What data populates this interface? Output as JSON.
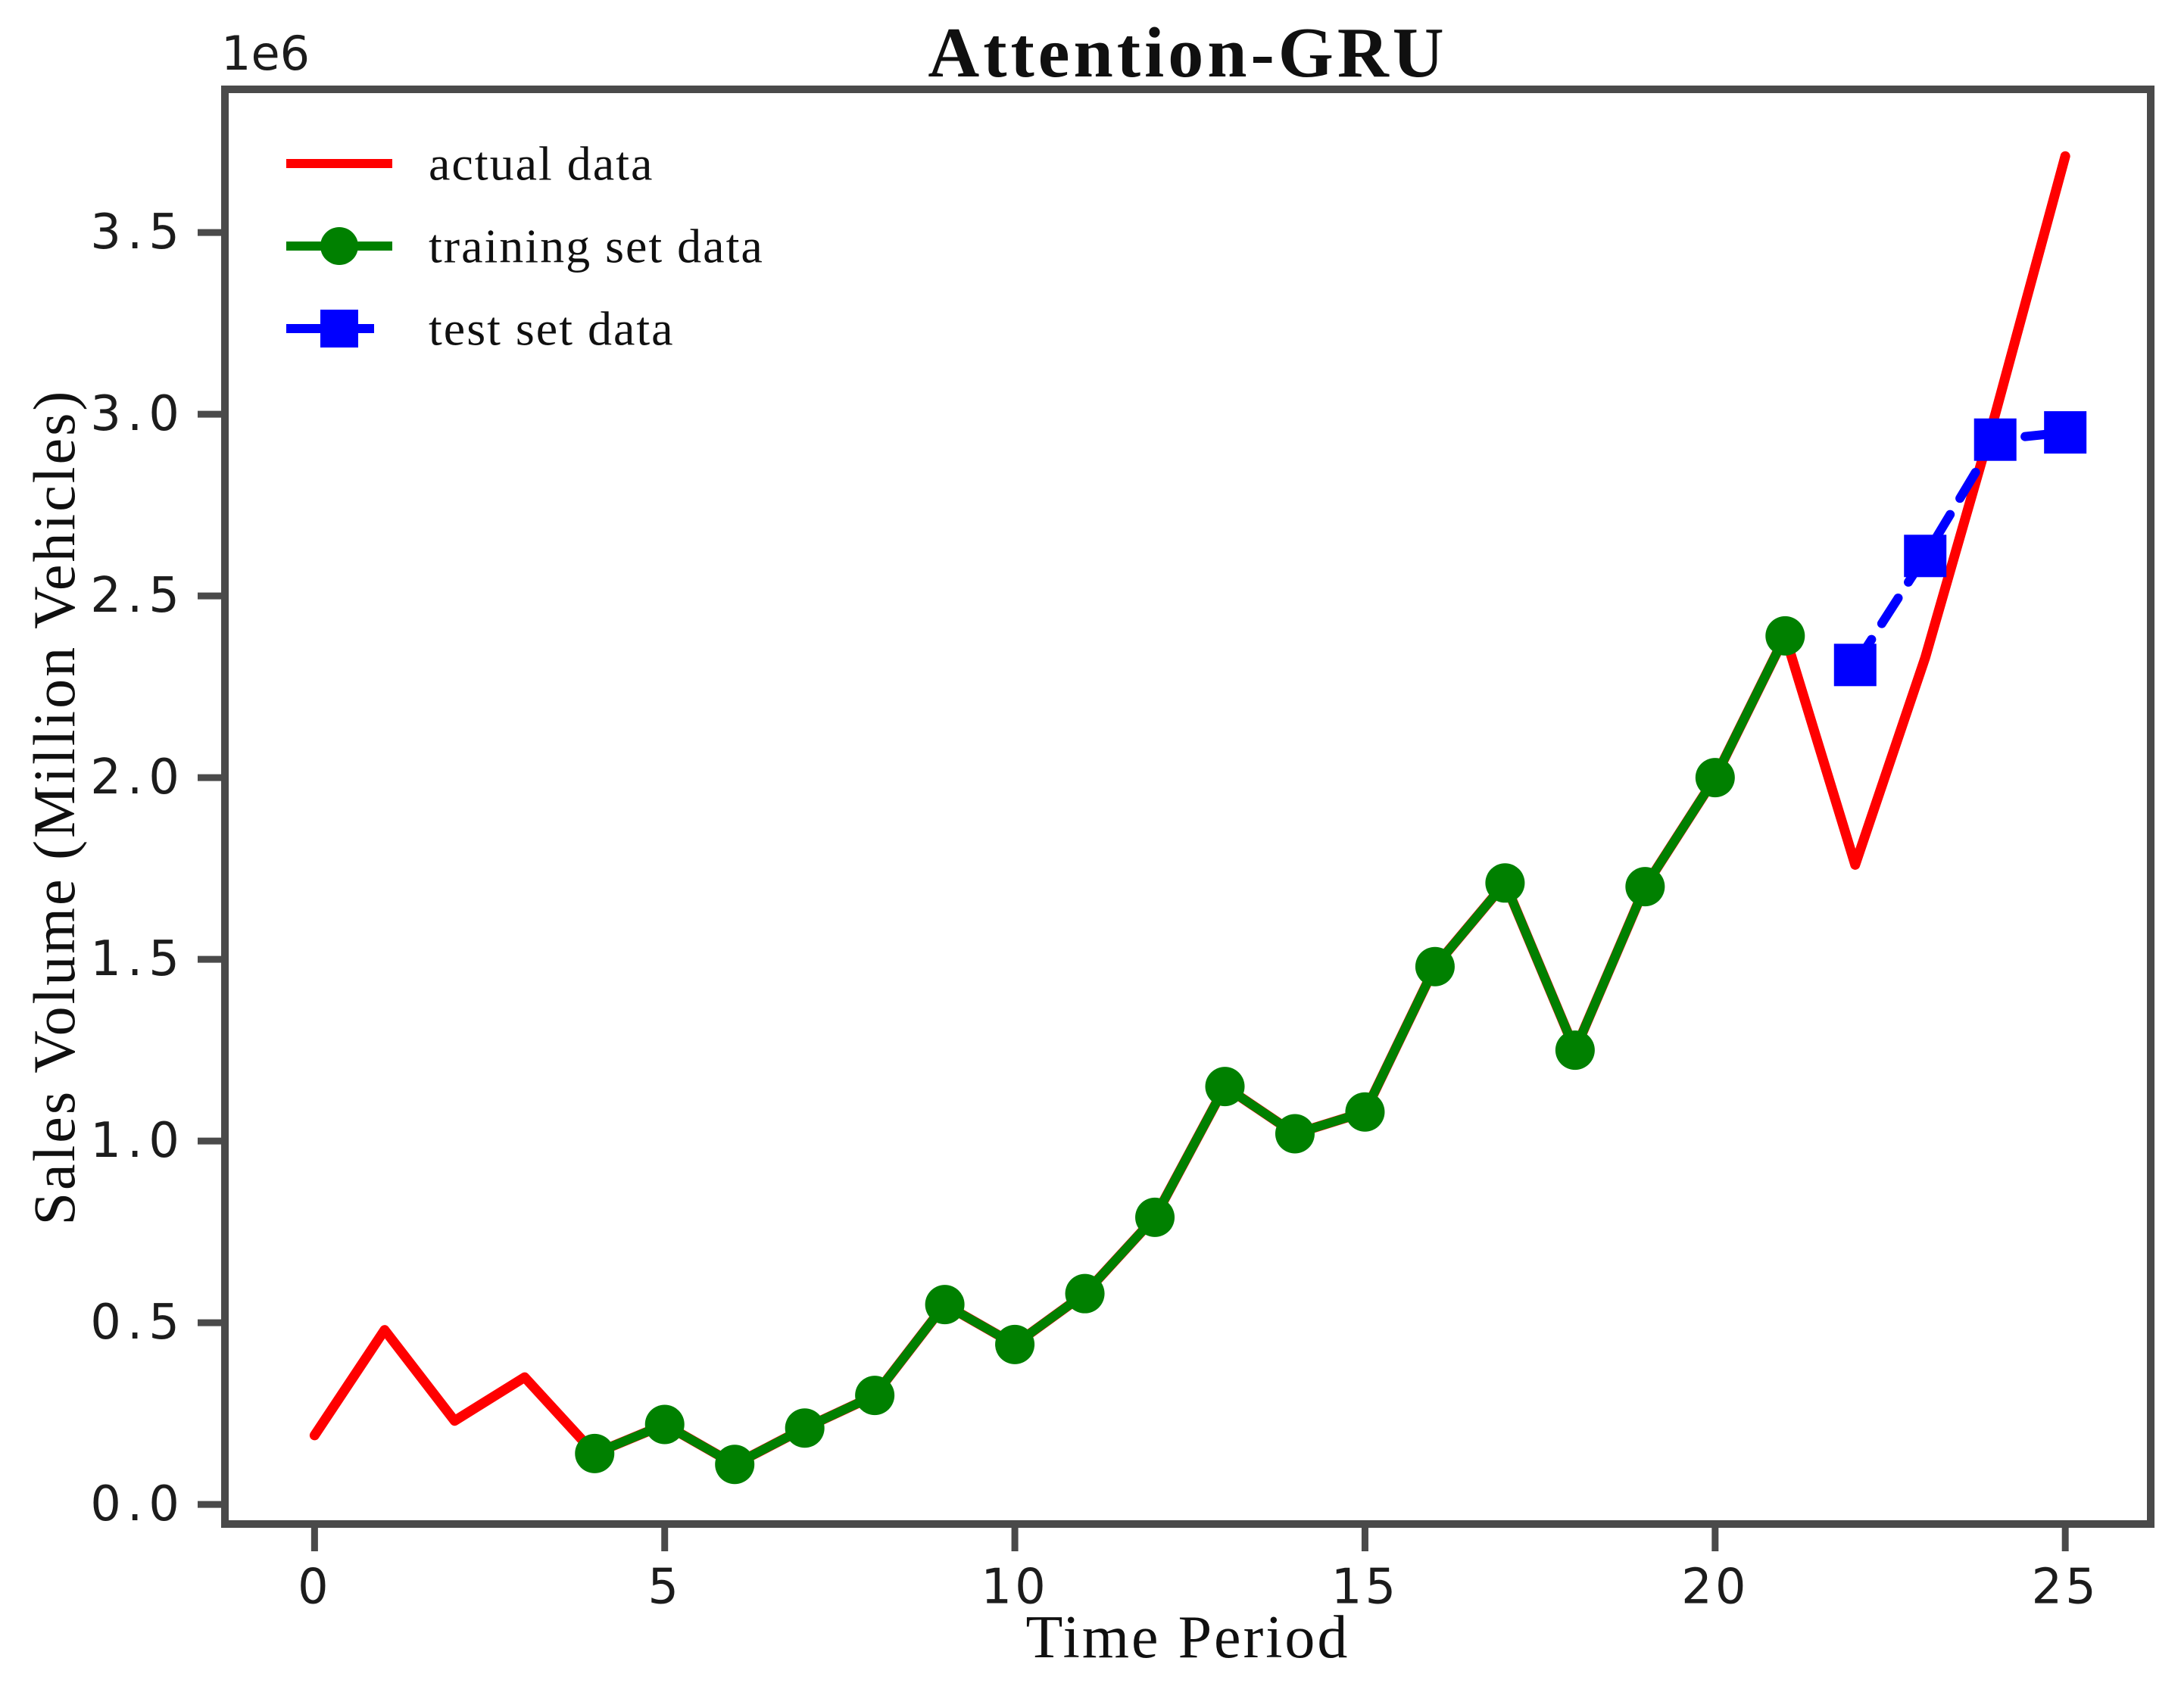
{
  "figure": {
    "title": "Attention-GRU",
    "xlabel": "Time Period",
    "ylabel": "Sales Volume (Million Vehicles)",
    "y_offset_label": "1e6",
    "background_color": "#ffffff",
    "axis_color": "#4a4a4a",
    "tick_text_color": "#1c1c1c",
    "text_color": "#101010"
  },
  "chart_data": {
    "type": "line",
    "title": "Attention-GRU",
    "xlabel": "Time Period",
    "ylabel": "Sales Volume (Million Vehicles)",
    "y_offset_label": "1e6",
    "unit_note": "y values in millions of vehicles (axis scale 1e6)",
    "xlim": [
      -1.28,
      26.22
    ],
    "ylim": [
      -0.054,
      3.894
    ],
    "x_ticks": [
      0,
      5,
      10,
      15,
      20,
      25
    ],
    "x_tick_labels": [
      "0",
      "5",
      "10",
      "15",
      "20",
      "25"
    ],
    "y_ticks": [
      0.0,
      0.5,
      1.0,
      1.5,
      2.0,
      2.5,
      3.0,
      3.5
    ],
    "y_tick_labels": [
      "0.0",
      "0.5",
      "1.0",
      "1.5",
      "2.0",
      "2.5",
      "3.0",
      "3.5"
    ],
    "grid": false,
    "legend_position": "upper-left",
    "series": [
      {
        "name": "actual data",
        "color": "#ff0000",
        "line_style": "solid",
        "marker": "none",
        "x": [
          0,
          1,
          2,
          3,
          4,
          5,
          6,
          7,
          8,
          9,
          10,
          11,
          12,
          13,
          14,
          15,
          16,
          17,
          18,
          19,
          20,
          21,
          22,
          23,
          24,
          25
        ],
        "values": [
          0.19,
          0.48,
          0.23,
          0.35,
          0.14,
          0.22,
          0.11,
          0.21,
          0.3,
          0.55,
          0.44,
          0.58,
          0.79,
          1.15,
          1.02,
          1.08,
          1.48,
          1.71,
          1.25,
          1.7,
          2.0,
          2.39,
          1.76,
          2.33,
          3.0,
          3.71
        ]
      },
      {
        "name": "training set data",
        "color": "#008000",
        "line_style": "solid",
        "marker": "circle",
        "x": [
          4,
          5,
          6,
          7,
          8,
          9,
          10,
          11,
          12,
          13,
          14,
          15,
          16,
          17,
          18,
          19,
          20,
          21
        ],
        "values": [
          0.14,
          0.22,
          0.11,
          0.21,
          0.3,
          0.55,
          0.44,
          0.58,
          0.79,
          1.15,
          1.02,
          1.08,
          1.48,
          1.71,
          1.25,
          1.7,
          2.0,
          2.39
        ]
      },
      {
        "name": "test set data",
        "color": "#0000ff",
        "line_style": "dashed",
        "marker": "square",
        "x": [
          22,
          23,
          24,
          25
        ],
        "values": [
          2.31,
          2.61,
          2.93,
          2.95
        ]
      }
    ]
  }
}
